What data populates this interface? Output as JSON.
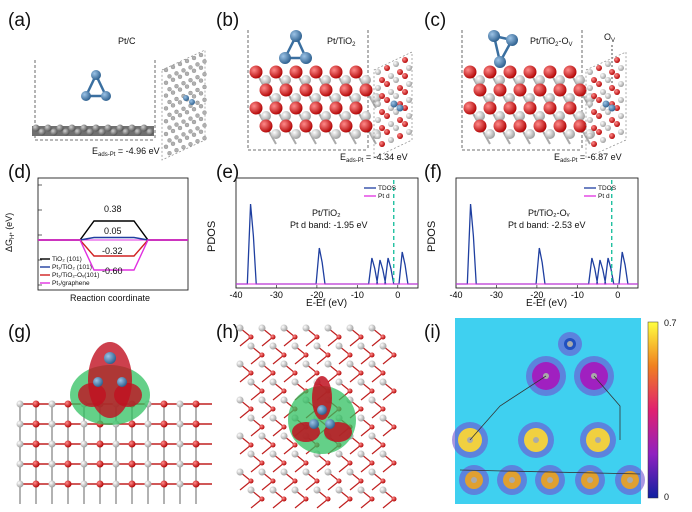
{
  "labels": {
    "a": "(a)",
    "b": "(b)",
    "c": "(c)",
    "d": "(d)",
    "e": "(e)",
    "f": "(f)",
    "g": "(g)",
    "h": "(h)",
    "i": "(i)"
  },
  "panel_a": {
    "title": "Pt/C",
    "energy_prefix": "E",
    "energy_sub": "ads-Pt",
    "energy_value": " = -4.96 eV"
  },
  "panel_b": {
    "title": "Pt/TiO",
    "title_sub": "2",
    "energy_prefix": "E",
    "energy_sub": "ads-Pt",
    "energy_value": " = -4.34 eV"
  },
  "panel_c": {
    "title": "Pt/TiO",
    "title_sub": "2",
    "title_suffix": "-O",
    "title_suffix_sub": "V",
    "ov_label": "O",
    "ov_sub": "V",
    "energy_prefix": "E",
    "energy_sub": "ads-Pt",
    "energy_value": " = -6.87 eV"
  },
  "chart_data": [
    {
      "type": "line",
      "ylabel": "ΔGH* (eV)",
      "xlabel": "Reaction coordinate",
      "series": [
        {
          "name": "TiO₂ (101)",
          "value": 0.38,
          "color": "#000000"
        },
        {
          "name": "Pt₁/TiO₂ (101)",
          "value": 0.05,
          "color": "#1f3fa0"
        },
        {
          "name": "Pt₁/TiO₂-Oᵥ(101)",
          "value": -0.32,
          "color": "#d02020"
        },
        {
          "name": "Pt₁/graphene",
          "value": -0.6,
          "color": "#e030e0"
        }
      ],
      "value_labels": [
        "0.38",
        "0.05",
        "-0.32",
        "-0.60"
      ]
    },
    {
      "type": "line",
      "ylabel": "PDOS",
      "xlabel": "E-Ef (eV)",
      "xlim": [
        -40,
        5
      ],
      "x_ticks": [
        "-40",
        "-30",
        "-20",
        "-10",
        "0"
      ],
      "title": "Pt/TiO₂",
      "annotation": "Pt d band: -1.95 eV",
      "legend": [
        "TDOS",
        "Pt d"
      ],
      "series": [
        {
          "name": "TDOS",
          "peaks_x": [
            -36,
            -19,
            -4,
            1.5
          ],
          "color": "#1f3fa0"
        }
      ]
    },
    {
      "type": "line",
      "ylabel": "PDOS",
      "xlabel": "E-Ef (eV)",
      "xlim": [
        -40,
        5
      ],
      "x_ticks": [
        "-40",
        "-30",
        "-20",
        "-10",
        "0"
      ],
      "title": "Pt/TiO₂-Oᵥ",
      "annotation": "Pt d band: -2.53 eV",
      "legend": [
        "TDOS",
        "Pt d"
      ],
      "series": [
        {
          "name": "TDOS",
          "peaks_x": [
            -36,
            -19,
            -4,
            1.5
          ],
          "color": "#1f3fa0"
        }
      ]
    }
  ],
  "colorbar": {
    "max": "0.7",
    "min": "0"
  },
  "colors": {
    "pt": "#3a6fa0",
    "ti": "#bfbfbf",
    "o": "#d51d1d",
    "c": "#808080",
    "dos": "#1f3fa0",
    "ptd": "#e030e0",
    "dash": "#20c0a0"
  }
}
